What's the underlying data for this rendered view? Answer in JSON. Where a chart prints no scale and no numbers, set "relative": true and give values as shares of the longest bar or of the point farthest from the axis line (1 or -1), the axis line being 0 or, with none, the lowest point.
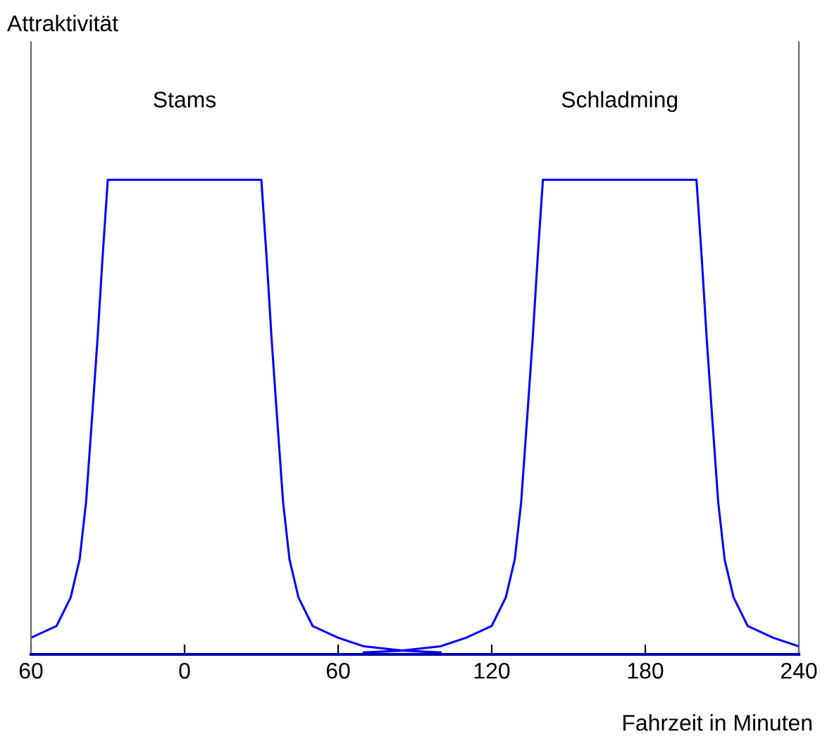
{
  "chart_data": {
    "type": "line",
    "relative": true,
    "xlabel": "Fahrzeit in Minuten",
    "xlim": [
      -60,
      240
    ],
    "xticks": [
      {
        "value": -60,
        "label": "60"
      },
      0,
      60,
      120,
      180,
      240
    ],
    "annotations": [
      "Attraktivität",
      "Stams",
      "Schladming"
    ],
    "grid": false,
    "legend": false,
    "marker": "none",
    "line_style": "solid",
    "tick_labels": "x",
    "series": [
      {
        "color": "#0000ff",
        "x": [
          -60,
          -50,
          -44.5,
          -41,
          -38.5,
          -36,
          -34,
          -32,
          -30,
          30,
          32,
          34,
          36,
          38.5,
          41,
          44.5,
          50,
          60,
          70,
          85,
          100
        ],
        "values": [
          0.035,
          0.06,
          0.12,
          0.2,
          0.32,
          0.51,
          0.665,
          0.84,
          1,
          1,
          0.84,
          0.665,
          0.51,
          0.32,
          0.2,
          0.12,
          0.06,
          0.035,
          0.017,
          0.008,
          0.004
        ]
      },
      {
        "color": "#0000ff",
        "x": [
          70,
          85,
          100,
          110,
          120,
          125.5,
          129,
          131.5,
          134,
          136,
          138,
          140,
          200,
          202,
          204,
          206,
          208.5,
          211,
          214.5,
          220,
          230,
          240
        ],
        "values": [
          0.004,
          0.008,
          0.017,
          0.035,
          0.06,
          0.12,
          0.2,
          0.32,
          0.51,
          0.665,
          0.84,
          1,
          1,
          0.84,
          0.665,
          0.51,
          0.32,
          0.2,
          0.12,
          0.06,
          0.035,
          0.017
        ]
      }
    ]
  }
}
